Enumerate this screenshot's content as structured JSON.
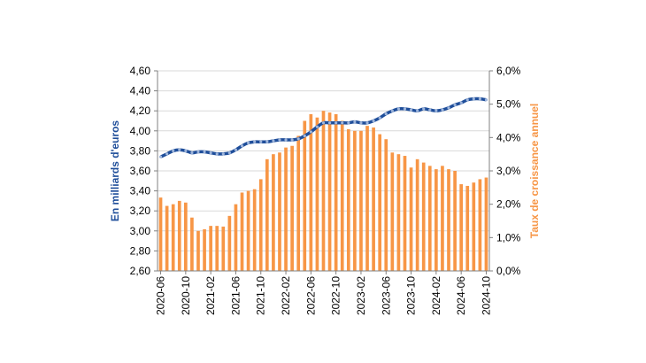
{
  "chart_data": {
    "type": "bar",
    "x": [
      "2020-06",
      "2020-07",
      "2020-08",
      "2020-09",
      "2020-10",
      "2020-11",
      "2020-12",
      "2021-01",
      "2021-02",
      "2021-03",
      "2021-04",
      "2021-05",
      "2021-06",
      "2021-07",
      "2021-08",
      "2021-09",
      "2021-10",
      "2021-11",
      "2021-12",
      "2022-01",
      "2022-02",
      "2022-03",
      "2022-04",
      "2022-05",
      "2022-06",
      "2022-07",
      "2022-08",
      "2022-09",
      "2022-10",
      "2022-11",
      "2022-12",
      "2023-01",
      "2023-02",
      "2023-03",
      "2023-04",
      "2023-05",
      "2023-06",
      "2023-07",
      "2023-08",
      "2023-09",
      "2023-10",
      "2023-11",
      "2023-12",
      "2024-01",
      "2024-02",
      "2024-03",
      "2024-04",
      "2024-05",
      "2024-06",
      "2024-07",
      "2024-08",
      "2024-09",
      "2024-10"
    ],
    "x_tick_labels": [
      "2020-06",
      "2020-10",
      "2021-02",
      "2021-06",
      "2021-10",
      "2022-02",
      "2022-06",
      "2022-10",
      "2023-02",
      "2023-06",
      "2023-10",
      "2024-02",
      "2024-06",
      "2024-10"
    ],
    "series": [
      {
        "type": "line",
        "axis": "left",
        "color": "#1f4e9a",
        "values": [
          3.74,
          3.77,
          3.8,
          3.81,
          3.8,
          3.78,
          3.79,
          3.79,
          3.78,
          3.77,
          3.77,
          3.78,
          3.81,
          3.85,
          3.88,
          3.89,
          3.89,
          3.89,
          3.9,
          3.91,
          3.91,
          3.91,
          3.92,
          3.95,
          3.99,
          4.04,
          4.08,
          4.08,
          4.08,
          4.08,
          4.08,
          4.09,
          4.08,
          4.08,
          4.1,
          4.13,
          4.17,
          4.2,
          4.22,
          4.22,
          4.21,
          4.2,
          4.22,
          4.21,
          4.2,
          4.21,
          4.23,
          4.26,
          4.28,
          4.31,
          4.32,
          4.32,
          4.31
        ]
      },
      {
        "type": "bar",
        "axis": "right",
        "color": "#f79646",
        "values": [
          2.2,
          1.95,
          2.0,
          2.1,
          2.05,
          1.6,
          1.2,
          1.25,
          1.35,
          1.35,
          1.33,
          1.65,
          2.0,
          2.35,
          2.4,
          2.45,
          2.75,
          3.35,
          3.5,
          3.55,
          3.7,
          3.75,
          4.05,
          4.5,
          4.7,
          4.6,
          4.8,
          4.75,
          4.7,
          4.5,
          4.25,
          4.2,
          4.2,
          4.35,
          4.3,
          4.1,
          3.95,
          3.55,
          3.5,
          3.45,
          3.1,
          3.35,
          3.25,
          3.15,
          3.05,
          3.15,
          3.05,
          3.0,
          2.6,
          2.55,
          2.65,
          2.75,
          2.8
        ]
      }
    ],
    "ylabel_left": "En milliards d'euros",
    "ylabel_right": "Taux de croissance annuel",
    "ylim_left": [
      2.6,
      4.6
    ],
    "ylim_right": [
      0,
      6
    ],
    "yticks_left": [
      "2,60",
      "2,80",
      "3,00",
      "3,20",
      "3,40",
      "3,60",
      "3,80",
      "4,00",
      "4,20",
      "4,40",
      "4,60"
    ],
    "yticks_right": [
      "0,0%",
      "1,0%",
      "2,0%",
      "3,0%",
      "4,0%",
      "5,0%",
      "6,0%"
    ],
    "grid": "horizontal"
  }
}
